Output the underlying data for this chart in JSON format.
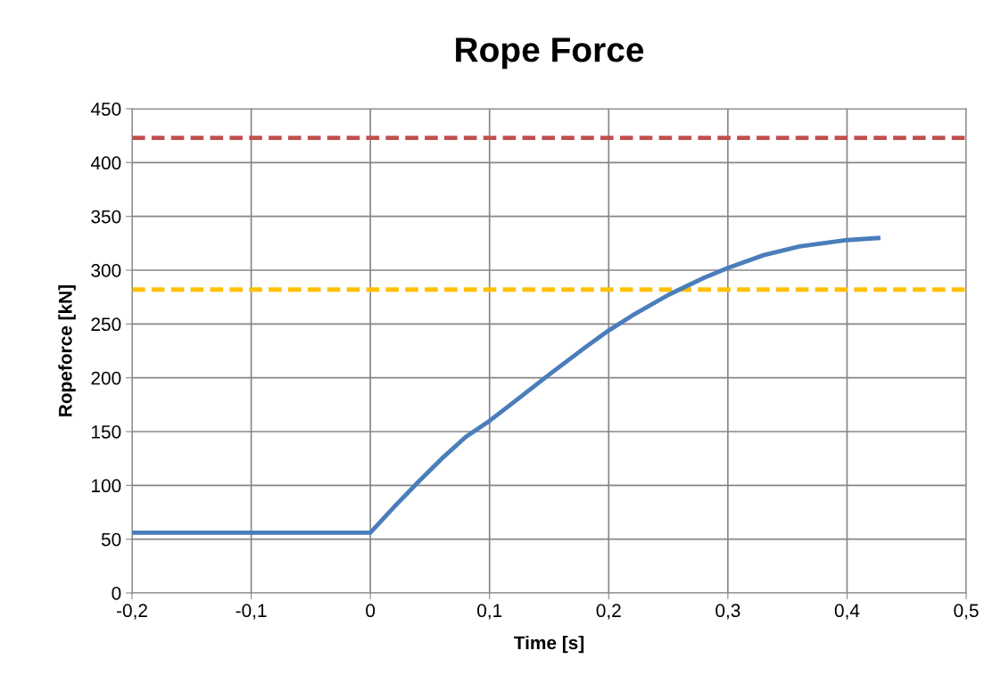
{
  "chart_data": {
    "type": "line",
    "title": "Rope Force",
    "xlabel": "Time [s]",
    "ylabel": "Ropeforce [kN]",
    "series": [
      {
        "color": "#4a7ebb",
        "x": [
          -0.2,
          0,
          0.02,
          0.04,
          0.06,
          0.08,
          0.1,
          0.12,
          0.15,
          0.18,
          0.2,
          0.22,
          0.25,
          0.28,
          0.3,
          0.33,
          0.36,
          0.4,
          0.428
        ],
        "values": [
          56,
          56,
          80,
          103,
          125,
          145,
          160,
          177,
          203,
          228,
          244,
          258,
          277,
          293,
          302,
          314,
          322,
          328,
          330
        ]
      }
    ],
    "ref_lines": [
      {
        "axis": "y",
        "value": 423,
        "color": "#c0504d",
        "line_style": "dashed"
      },
      {
        "axis": "y",
        "value": 282,
        "color": "#ffc000",
        "line_style": "dashed"
      }
    ],
    "xlim": [
      -0.2,
      0.5
    ],
    "xticks": [
      {
        "value": -0.2,
        "label": "-0,2"
      },
      {
        "value": -0.1,
        "label": "-0,1"
      },
      0,
      {
        "value": 0.1,
        "label": "0,1"
      },
      {
        "value": 0.2,
        "label": "0,2"
      },
      {
        "value": 0.3,
        "label": "0,3"
      },
      {
        "value": 0.4,
        "label": "0,4"
      },
      {
        "value": 0.5,
        "label": "0,5"
      }
    ],
    "ylim": [
      0,
      450
    ],
    "yticks": [
      0,
      50,
      100,
      150,
      200,
      250,
      300,
      350,
      400,
      450
    ],
    "grid": true,
    "marker": "none",
    "line_style": "solid"
  }
}
